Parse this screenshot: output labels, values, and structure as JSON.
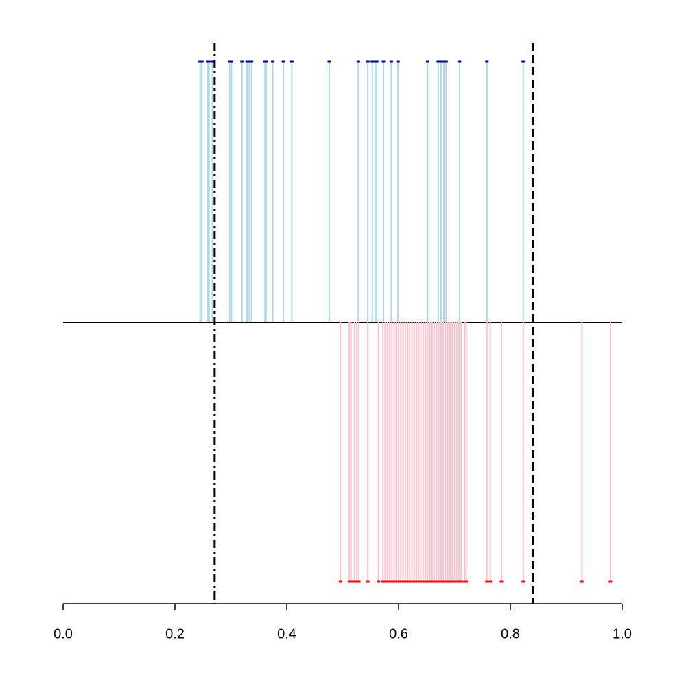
{
  "chart_data": {
    "type": "rug",
    "xlim": [
      0,
      1
    ],
    "xticks": [
      {
        "value": 0,
        "label": "0.0"
      },
      0.2,
      0.4,
      0.6,
      0.8,
      {
        "value": 1,
        "label": "1.0"
      }
    ],
    "series": [
      {
        "color": "#add8e6",
        "point_color": "#00008b",
        "direction": "up",
        "values": [
          0.245,
          0.248,
          0.259,
          0.261,
          0.267,
          0.298,
          0.301,
          0.32,
          0.329,
          0.333,
          0.337,
          0.361,
          0.363,
          0.375,
          0.394,
          0.409,
          0.476,
          0.528,
          0.545,
          0.553,
          0.558,
          0.561,
          0.573,
          0.587,
          0.599,
          0.652,
          0.671,
          0.676,
          0.681,
          0.685,
          0.709,
          0.758,
          0.823
        ]
      },
      {
        "color": "#ffc0cb",
        "point_color": "#ff0000",
        "direction": "down",
        "values": [
          0.496,
          0.512,
          0.515,
          0.521,
          0.525,
          0.529,
          0.545,
          0.564,
          0.572,
          0.576,
          0.58,
          0.584,
          0.588,
          0.592,
          0.596,
          0.6,
          0.604,
          0.608,
          0.612,
          0.616,
          0.62,
          0.624,
          0.628,
          0.632,
          0.636,
          0.64,
          0.644,
          0.648,
          0.652,
          0.656,
          0.66,
          0.664,
          0.668,
          0.672,
          0.676,
          0.68,
          0.684,
          0.688,
          0.692,
          0.696,
          0.7,
          0.704,
          0.708,
          0.712,
          0.718,
          0.721,
          0.758,
          0.764,
          0.784,
          0.823,
          0.928,
          0.979
        ]
      }
    ],
    "vlines": [
      {
        "value": 0.271,
        "style": "dashdot"
      },
      {
        "value": 0.84,
        "style": "dashed"
      }
    ]
  }
}
